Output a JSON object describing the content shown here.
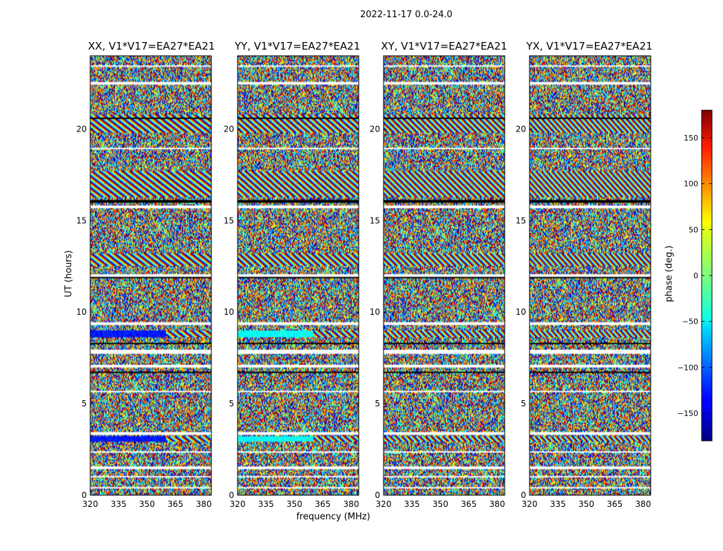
{
  "figure": {
    "suptitle": "2022-11-17 0.0-24.0",
    "xlabel": "frequency (MHz)",
    "ylabel": "UT (hours)",
    "colorbar_label": "phase (deg.)"
  },
  "chart_data": {
    "type": "heatmap",
    "panels": [
      {
        "title": "XX, V1*V17=EA27*EA21"
      },
      {
        "title": "YY, V1*V17=EA27*EA21"
      },
      {
        "title": "XY, V1*V17=EA27*EA21"
      },
      {
        "title": "YX, V1*V17=EA27*EA21"
      }
    ],
    "x_ticks": [
      320,
      335,
      350,
      365,
      380
    ],
    "xlim": [
      320,
      384
    ],
    "y_ticks": [
      0,
      5,
      10,
      15,
      20
    ],
    "ylim": [
      0,
      24
    ],
    "colorbar": {
      "range": [
        -180,
        180
      ],
      "ticks": [
        150,
        100,
        50,
        0,
        -50,
        -100,
        -150
      ],
      "tick_labels": [
        "150",
        "100",
        "50",
        "0",
        "−50",
        "−100",
        "−150"
      ],
      "colormap": "jet"
    }
  }
}
